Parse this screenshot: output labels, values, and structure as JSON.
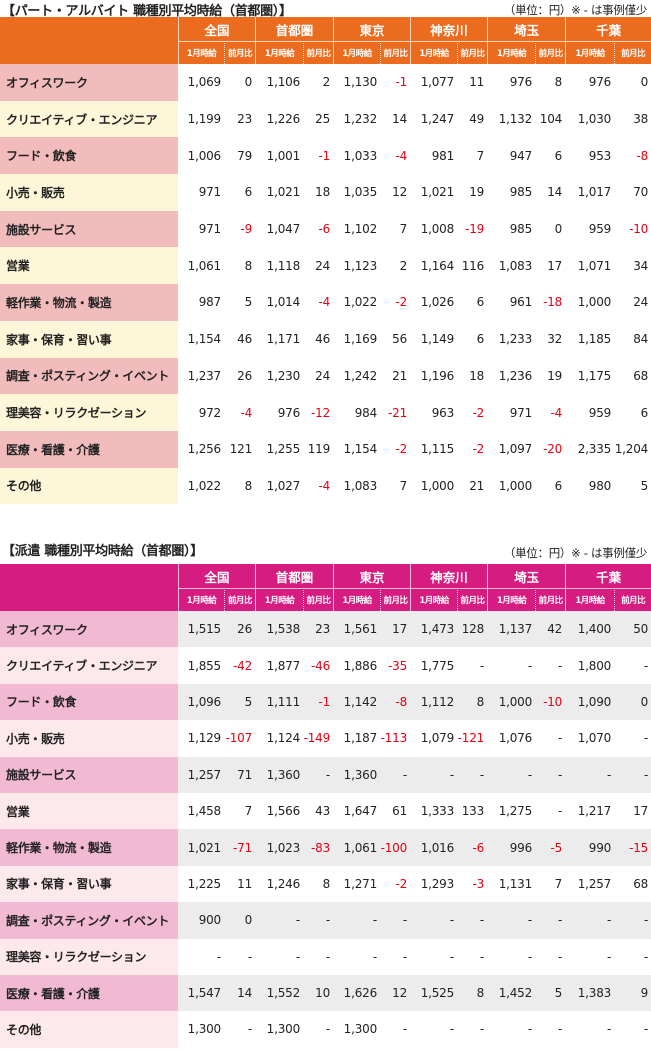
{
  "part": {
    "title": "【パート・アルバイト 職種別平均時給（首都圏）】",
    "unit_note": "（単位：円）※ - は事例僅少",
    "regions": [
      "全国",
      "首都圏",
      "東京",
      "神奈川",
      "埼玉",
      "千葉"
    ],
    "sub_headers": [
      "1月時給",
      "前月比"
    ],
    "rows": [
      {
        "label": "オフィスワーク",
        "values": [
          "1,069",
          "0",
          "1,106",
          "2",
          "1,130",
          "-1",
          "1,077",
          "11",
          "976",
          "8",
          "976",
          "0"
        ]
      },
      {
        "label": "クリエイティブ・エンジニア",
        "values": [
          "1,199",
          "23",
          "1,226",
          "25",
          "1,232",
          "14",
          "1,247",
          "49",
          "1,132",
          "104",
          "1,030",
          "38"
        ]
      },
      {
        "label": "フード・飲食",
        "values": [
          "1,006",
          "79",
          "1,001",
          "-1",
          "1,033",
          "-4",
          "981",
          "7",
          "947",
          "6",
          "953",
          "-8"
        ]
      },
      {
        "label": "小売・販売",
        "values": [
          "971",
          "6",
          "1,021",
          "18",
          "1,035",
          "12",
          "1,021",
          "19",
          "985",
          "14",
          "1,017",
          "70"
        ]
      },
      {
        "label": "施設サービス",
        "values": [
          "971",
          "-9",
          "1,047",
          "-6",
          "1,102",
          "7",
          "1,008",
          "-19",
          "985",
          "0",
          "959",
          "-10"
        ]
      },
      {
        "label": "営業",
        "values": [
          "1,061",
          "8",
          "1,118",
          "24",
          "1,123",
          "2",
          "1,164",
          "116",
          "1,083",
          "17",
          "1,071",
          "34"
        ]
      },
      {
        "label": "軽作業・物流・製造",
        "values": [
          "987",
          "5",
          "1,014",
          "-4",
          "1,022",
          "-2",
          "1,026",
          "6",
          "961",
          "-18",
          "1,000",
          "24"
        ]
      },
      {
        "label": "家事・保育・習い事",
        "values": [
          "1,154",
          "46",
          "1,171",
          "46",
          "1,169",
          "56",
          "1,149",
          "6",
          "1,233",
          "32",
          "1,185",
          "84"
        ]
      },
      {
        "label": "調査・ポスティング・イベント",
        "values": [
          "1,237",
          "26",
          "1,230",
          "24",
          "1,242",
          "21",
          "1,196",
          "18",
          "1,236",
          "19",
          "1,175",
          "68"
        ]
      },
      {
        "label": "理美容・リラクゼーション",
        "values": [
          "972",
          "-4",
          "976",
          "-12",
          "984",
          "-21",
          "963",
          "-2",
          "971",
          "-4",
          "959",
          "6"
        ]
      },
      {
        "label": "医療・看護・介護",
        "values": [
          "1,256",
          "121",
          "1,255",
          "119",
          "1,154",
          "-2",
          "1,115",
          "-2",
          "1,097",
          "-20",
          "2,335",
          "1,204"
        ]
      },
      {
        "label": "その他",
        "values": [
          "1,022",
          "8",
          "1,027",
          "-4",
          "1,083",
          "7",
          "1,000",
          "21",
          "1,000",
          "6",
          "980",
          "5"
        ]
      }
    ]
  },
  "haken": {
    "title": "【派遣 職種別平均時給（首都圏）】",
    "unit_note": "（単位：円）※ - は事例僅少",
    "regions": [
      "全国",
      "首都圏",
      "東京",
      "神奈川",
      "埼玉",
      "千葉"
    ],
    "sub_headers": [
      "1月時給",
      "前月比"
    ],
    "rows": [
      {
        "label": "オフィスワーク",
        "values": [
          "1,515",
          "26",
          "1,538",
          "23",
          "1,561",
          "17",
          "1,473",
          "128",
          "1,137",
          "42",
          "1,400",
          "50"
        ]
      },
      {
        "label": "クリエイティブ・エンジニア",
        "values": [
          "1,855",
          "-42",
          "1,877",
          "-46",
          "1,886",
          "-35",
          "1,775",
          "-",
          "-",
          "-",
          "1,800",
          "-"
        ]
      },
      {
        "label": "フード・飲食",
        "values": [
          "1,096",
          "5",
          "1,111",
          "-1",
          "1,142",
          "-8",
          "1,112",
          "8",
          "1,000",
          "-10",
          "1,090",
          "0"
        ]
      },
      {
        "label": "小売・販売",
        "values": [
          "1,129",
          "-107",
          "1,124",
          "-149",
          "1,187",
          "-113",
          "1,079",
          "-121",
          "1,076",
          "-",
          "1,070",
          "-"
        ]
      },
      {
        "label": "施設サービス",
        "values": [
          "1,257",
          "71",
          "1,360",
          "-",
          "1,360",
          "-",
          "-",
          "-",
          "-",
          "-",
          "-",
          "-"
        ]
      },
      {
        "label": "営業",
        "values": [
          "1,458",
          "7",
          "1,566",
          "43",
          "1,647",
          "61",
          "1,333",
          "133",
          "1,275",
          "-",
          "1,217",
          "17"
        ]
      },
      {
        "label": "軽作業・物流・製造",
        "values": [
          "1,021",
          "-71",
          "1,023",
          "-83",
          "1,061",
          "-100",
          "1,016",
          "-6",
          "996",
          "-5",
          "990",
          "-15"
        ]
      },
      {
        "label": "家事・保育・習い事",
        "values": [
          "1,225",
          "11",
          "1,246",
          "8",
          "1,271",
          "-2",
          "1,293",
          "-3",
          "1,131",
          "7",
          "1,257",
          "68"
        ]
      },
      {
        "label": "調査・ポスティング・イベント",
        "values": [
          "900",
          "0",
          "-",
          "-",
          "-",
          "-",
          "-",
          "-",
          "-",
          "-",
          "-",
          "-"
        ]
      },
      {
        "label": "理美容・リラクゼーション",
        "values": [
          "-",
          "-",
          "-",
          "-",
          "-",
          "-",
          "-",
          "-",
          "-",
          "-",
          "-",
          "-"
        ]
      },
      {
        "label": "医療・看護・介護",
        "values": [
          "1,547",
          "14",
          "1,552",
          "10",
          "1,626",
          "12",
          "1,525",
          "8",
          "1,452",
          "5",
          "1,383",
          "9"
        ]
      },
      {
        "label": "その他",
        "values": [
          "1,300",
          "-",
          "1,300",
          "-",
          "1,300",
          "-",
          "-",
          "-",
          "-",
          "-",
          "-",
          "-"
        ]
      }
    ]
  }
}
